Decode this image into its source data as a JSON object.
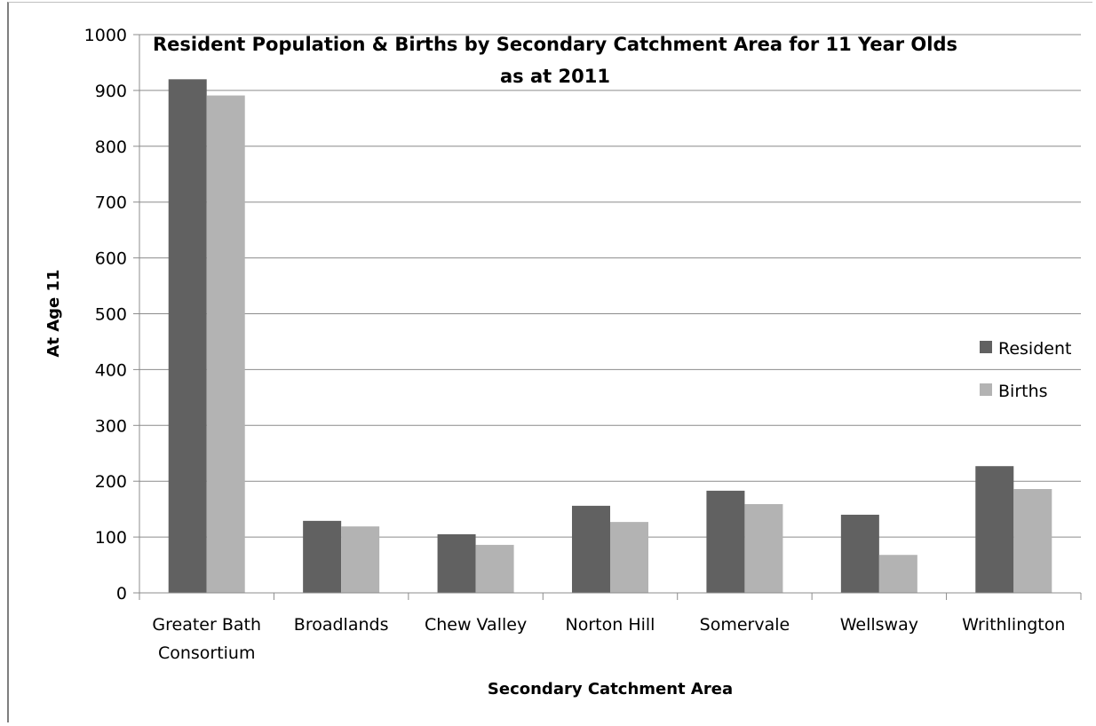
{
  "chart_data": {
    "type": "bar",
    "title": "Resident Population & Births by Secondary Catchment Area for 11 Year Olds",
    "subtitle": "as at 2011",
    "xlabel": "Secondary Catchment Area",
    "ylabel": "At Age 11",
    "ylim": [
      0,
      1000
    ],
    "yticks": [
      0,
      100,
      200,
      300,
      400,
      500,
      600,
      700,
      800,
      900,
      1000
    ],
    "grid": true,
    "legend_position": "right",
    "categories": [
      [
        "Greater Bath",
        "Consortium"
      ],
      [
        "Broadlands"
      ],
      [
        "Chew Valley"
      ],
      [
        "Norton Hill"
      ],
      [
        "Somervale"
      ],
      [
        "Wellsway"
      ],
      [
        "Writhlington"
      ]
    ],
    "series": [
      {
        "name": "Resident",
        "color": "#616161",
        "values": [
          920,
          129,
          105,
          156,
          183,
          140,
          227
        ]
      },
      {
        "name": "Births",
        "color": "#b3b3b3",
        "values": [
          891,
          119,
          86,
          127,
          159,
          68,
          186
        ]
      }
    ]
  }
}
